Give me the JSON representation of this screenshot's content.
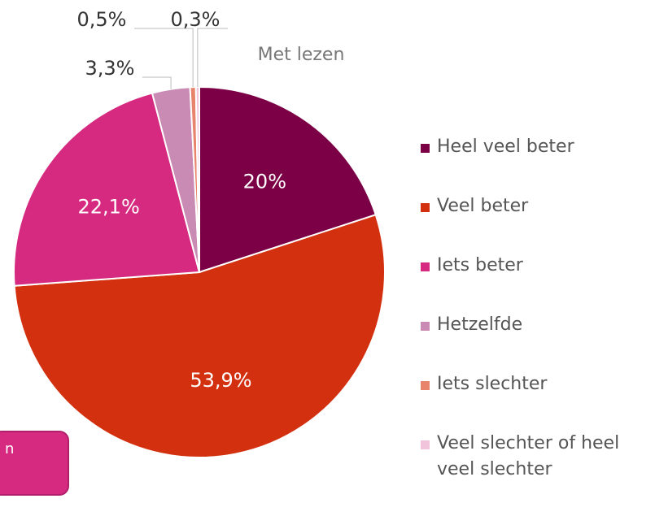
{
  "chart_data": {
    "type": "pie",
    "title": "Met lezen",
    "categories": [
      "Heel veel beter",
      "Veel beter",
      "Iets beter",
      "Hetzelfde",
      "Iets slechter",
      "Veel slechter of heel veel slechter"
    ],
    "values": [
      20,
      53.9,
      22.1,
      3.3,
      0.5,
      0.3
    ],
    "value_labels": [
      "20%",
      "53,9%",
      "22,1%",
      "3,3%",
      "0,5%",
      "0,3%"
    ],
    "colors": [
      "#7b0046",
      "#d3300f",
      "#d62a80",
      "#c98ab3",
      "#e8836c",
      "#f2c4dc"
    ],
    "legend": "right"
  },
  "overlay_text": "n"
}
